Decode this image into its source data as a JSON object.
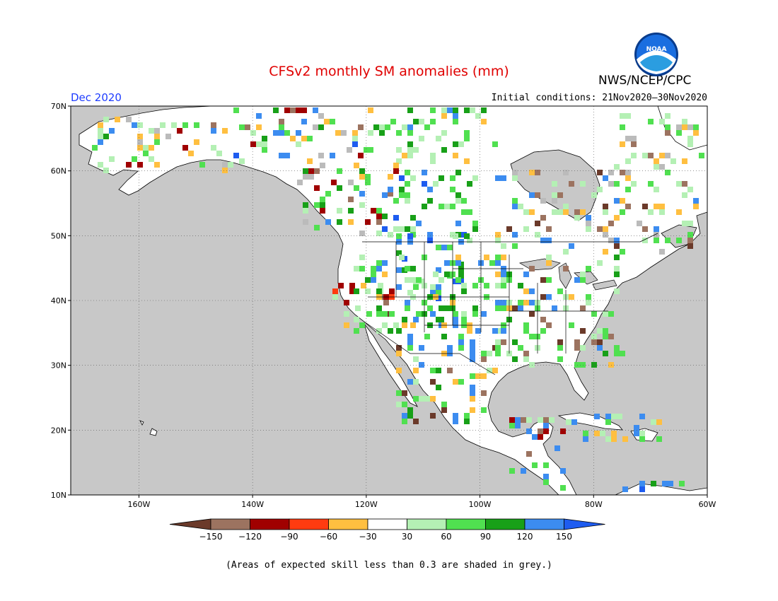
{
  "header": {
    "title": "CFSv2 monthly SM anomalies (mm)",
    "org": "NWS/NCEP/CPC",
    "month": "Dec 2020",
    "init_conditions": "Initial conditions: 21Nov2020–30Nov2020",
    "logo_text": "NOAA"
  },
  "map": {
    "lat_ticks": [
      "70N",
      "60N",
      "50N",
      "40N",
      "30N",
      "20N",
      "10N"
    ],
    "lon_ticks": [
      "160W",
      "140W",
      "120W",
      "100W",
      "80W",
      "60W"
    ],
    "lon_range": [
      -172,
      -60
    ],
    "lat_range": [
      10,
      70
    ],
    "colors": {
      "land": "#ffffff",
      "ocean": "#c8c8c8",
      "skill_grey": "#bbbbbb",
      "coast": "#000000"
    }
  },
  "colorbar": {
    "labels": [
      "−150",
      "−120",
      "−90",
      "−60",
      "−30",
      "30",
      "60",
      "90",
      "120",
      "150"
    ],
    "colors": [
      "#6b3a2a",
      "#9c7360",
      "#a00000",
      "#ff3b10",
      "#ffbf40",
      "#ffffff",
      "#b4f0b4",
      "#50e050",
      "#18a018",
      "#3c8cf0",
      "#1e5cf0"
    ]
  },
  "footnote": "(Areas of expected skill less than 0.3 are shaded in grey.)"
}
